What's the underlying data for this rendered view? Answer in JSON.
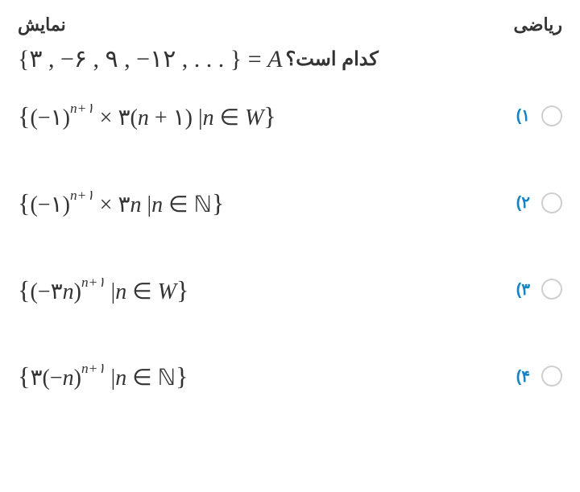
{
  "header": {
    "left": "ریاضی",
    "right": "نمایش"
  },
  "question": {
    "suffix_fa": "کدام است؟",
    "lhs": "A",
    "equals": " = ",
    "set_text": "{۳ ,  −۶ ,  ۹ ,  −۱۲ ,  . . . }"
  },
  "options": [
    {
      "num": "۱)",
      "math_html": "<span class='big'>{</span>(−۱)<sup>n+۱</sup> × ۳(<span class='it'>n</span> + ۱)&nbsp;|<span class='it'>n</span> ∈ <span class='it'>W</span><span class='big'>}</span>"
    },
    {
      "num": "۲)",
      "math_html": "<span class='big'>{</span>(−۱)<sup>n+۱</sup> × ۳<span class='it'>n</span>&nbsp;|<span class='it'>n</span> ∈ <span class='bbN'>ℕ</span><span class='big'>}</span>"
    },
    {
      "num": "۳)",
      "math_html": "<span class='big'>{</span>(−۳<span class='it'>n</span>)<sup>n+۱</sup>&nbsp;|<span class='it'>n</span> ∈ <span class='it'>W</span><span class='big'>}</span>"
    },
    {
      "num": "۴)",
      "math_html": "<span class='big'>{</span>۳(−<span class='it'>n</span>)<sup>n+۱</sup>&nbsp;|<span class='it'>n</span> ∈ <span class='bbN'>ℕ</span><span class='big'>}</span>"
    }
  ],
  "colors": {
    "text": "#333333",
    "accent": "#1584c4",
    "radio_border": "#cfcfcf",
    "background": "#ffffff"
  }
}
